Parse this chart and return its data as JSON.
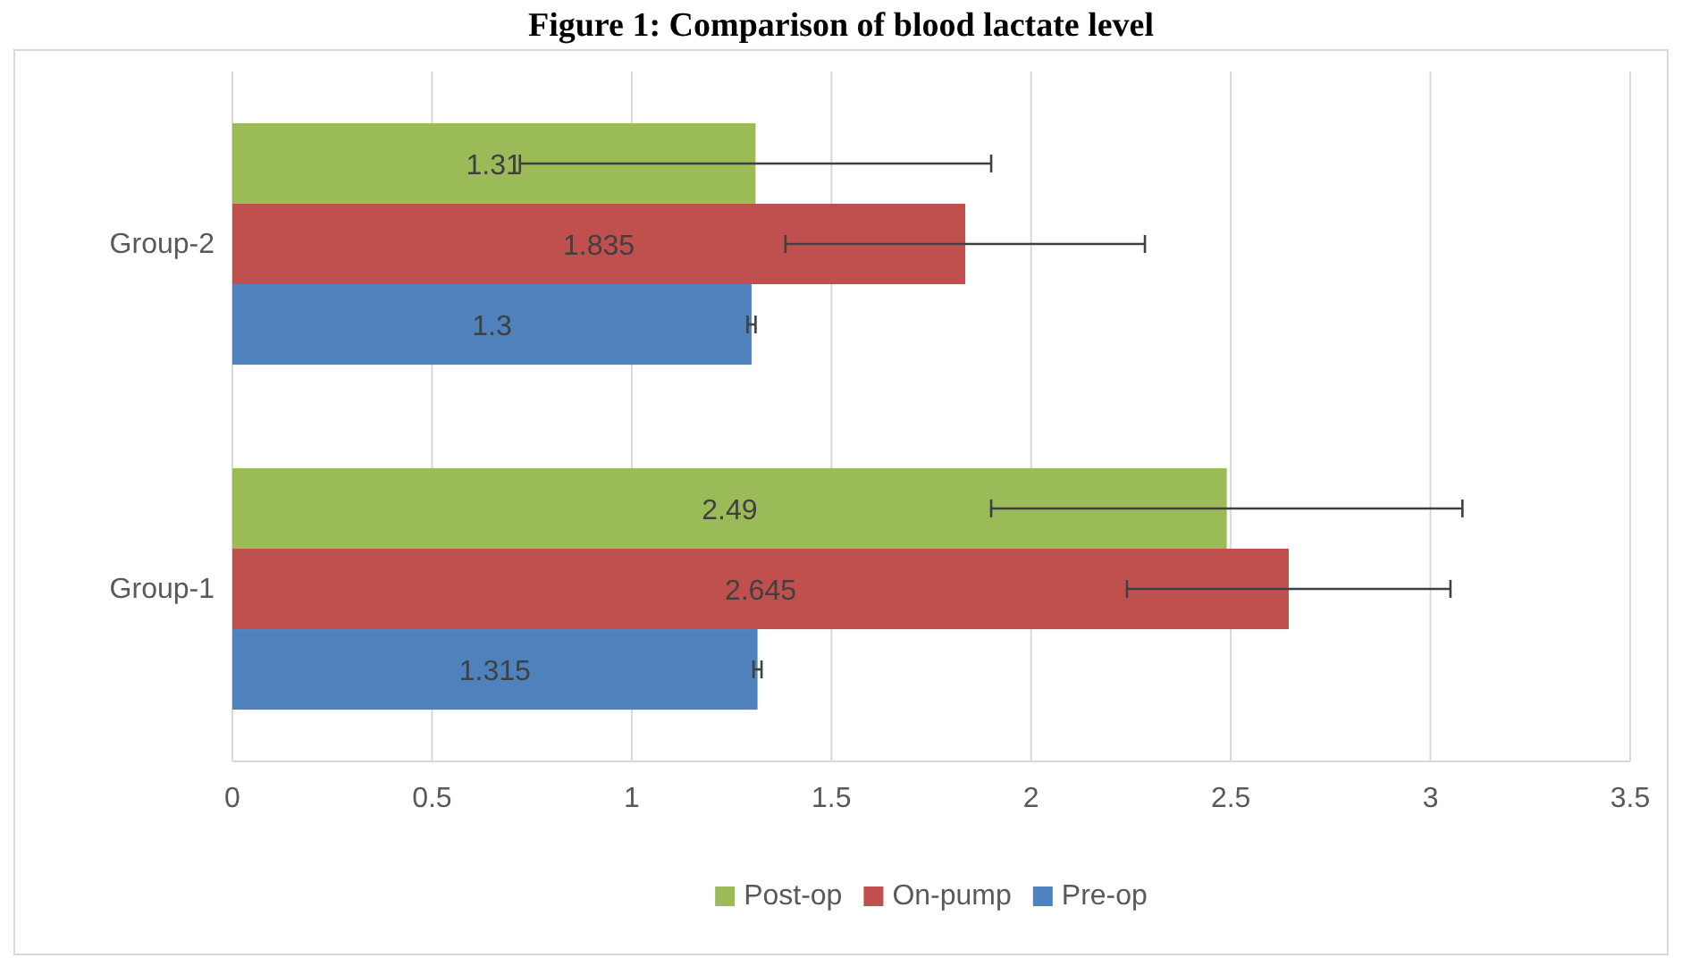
{
  "chart_data": {
    "type": "bar",
    "orientation": "horizontal",
    "title": "Figure 1: Comparison of blood lactate level",
    "categories": [
      "Group-2",
      "Group-1"
    ],
    "series": [
      {
        "name": "Post-op",
        "color": "#9bbb59",
        "values": [
          1.31,
          2.49
        ],
        "errors": [
          0.59,
          0.59
        ]
      },
      {
        "name": "On-pump",
        "color": "#c0504d",
        "values": [
          1.835,
          2.645
        ],
        "errors": [
          0.45,
          0.405
        ]
      },
      {
        "name": "Pre-op",
        "color": "#4f81bd",
        "values": [
          1.3,
          1.315
        ],
        "errors": [
          0.01,
          0.01
        ]
      }
    ],
    "xlim": [
      0,
      3.5
    ],
    "xticks": [
      0,
      0.5,
      1,
      1.5,
      2,
      2.5,
      3,
      3.5
    ],
    "grid": "x",
    "legend": "bottom",
    "data_labels": true
  }
}
